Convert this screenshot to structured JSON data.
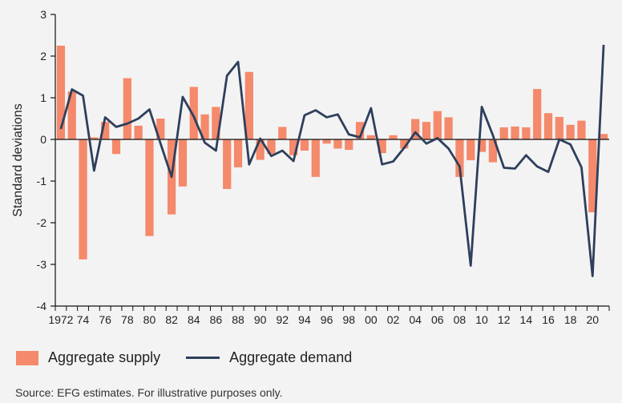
{
  "chart_data": {
    "type": "bar+line",
    "title": "",
    "xlabel": "",
    "ylabel": "Standard deviations",
    "ylim": [
      -4,
      3
    ],
    "yticks": [
      -4,
      -3,
      -2,
      -1,
      0,
      1,
      2,
      3
    ],
    "x": [
      1972,
      1973,
      1974,
      1975,
      1976,
      1977,
      1978,
      1979,
      1980,
      1981,
      1982,
      1983,
      1984,
      1985,
      1986,
      1987,
      1988,
      1989,
      1990,
      1991,
      1992,
      1993,
      1994,
      1995,
      1996,
      1997,
      1998,
      1999,
      2000,
      2001,
      2002,
      2003,
      2004,
      2005,
      2006,
      2007,
      2008,
      2009,
      2010,
      2011,
      2012,
      2013,
      2014,
      2015,
      2016,
      2017,
      2018,
      2019,
      2020,
      2021
    ],
    "xtick_labels": [
      "1972",
      "74",
      "76",
      "78",
      "80",
      "82",
      "84",
      "86",
      "88",
      "90",
      "92",
      "94",
      "96",
      "98",
      "00",
      "02",
      "04",
      "06",
      "08",
      "10",
      "12",
      "14",
      "16",
      "18",
      "20"
    ],
    "grid": false,
    "legend_position": "bottom",
    "series": [
      {
        "name": "Aggregate supply",
        "type": "bar",
        "color": "#f4896b",
        "values": [
          2.25,
          1.15,
          -2.88,
          0.05,
          0.42,
          -0.35,
          1.47,
          0.33,
          -2.32,
          0.5,
          -1.8,
          -1.13,
          1.26,
          0.6,
          0.78,
          -1.19,
          -0.67,
          1.62,
          -0.49,
          -0.35,
          0.3,
          -0.38,
          -0.27,
          -0.9,
          -0.1,
          -0.22,
          -0.25,
          0.42,
          0.1,
          -0.33,
          0.1,
          -0.22,
          0.49,
          0.42,
          0.68,
          0.53,
          -0.9,
          -0.5,
          -0.3,
          -0.55,
          0.29,
          0.31,
          0.29,
          1.21,
          0.63,
          0.54,
          0.35,
          0.45,
          -1.75,
          0.13
        ]
      },
      {
        "name": "Aggregate demand",
        "type": "line",
        "color": "#2e3f5c",
        "values": [
          0.25,
          1.2,
          1.05,
          -0.75,
          0.53,
          0.3,
          0.38,
          0.5,
          0.72,
          -0.1,
          -0.9,
          1.02,
          0.55,
          -0.08,
          -0.27,
          1.53,
          1.86,
          -0.6,
          0.02,
          -0.4,
          -0.27,
          -0.52,
          0.58,
          0.7,
          0.53,
          0.6,
          0.12,
          0.05,
          0.75,
          -0.6,
          -0.53,
          -0.2,
          0.17,
          -0.1,
          0.03,
          -0.22,
          -0.65,
          -3.03,
          0.78,
          0.1,
          -0.68,
          -0.7,
          -0.38,
          -0.65,
          -0.78,
          0.0,
          -0.12,
          -0.67,
          -3.28,
          2.27
        ]
      }
    ]
  },
  "legend": {
    "supply_label": "Aggregate supply",
    "demand_label": "Aggregate demand"
  },
  "source": "Source: EFG estimates. For illustrative purposes only."
}
